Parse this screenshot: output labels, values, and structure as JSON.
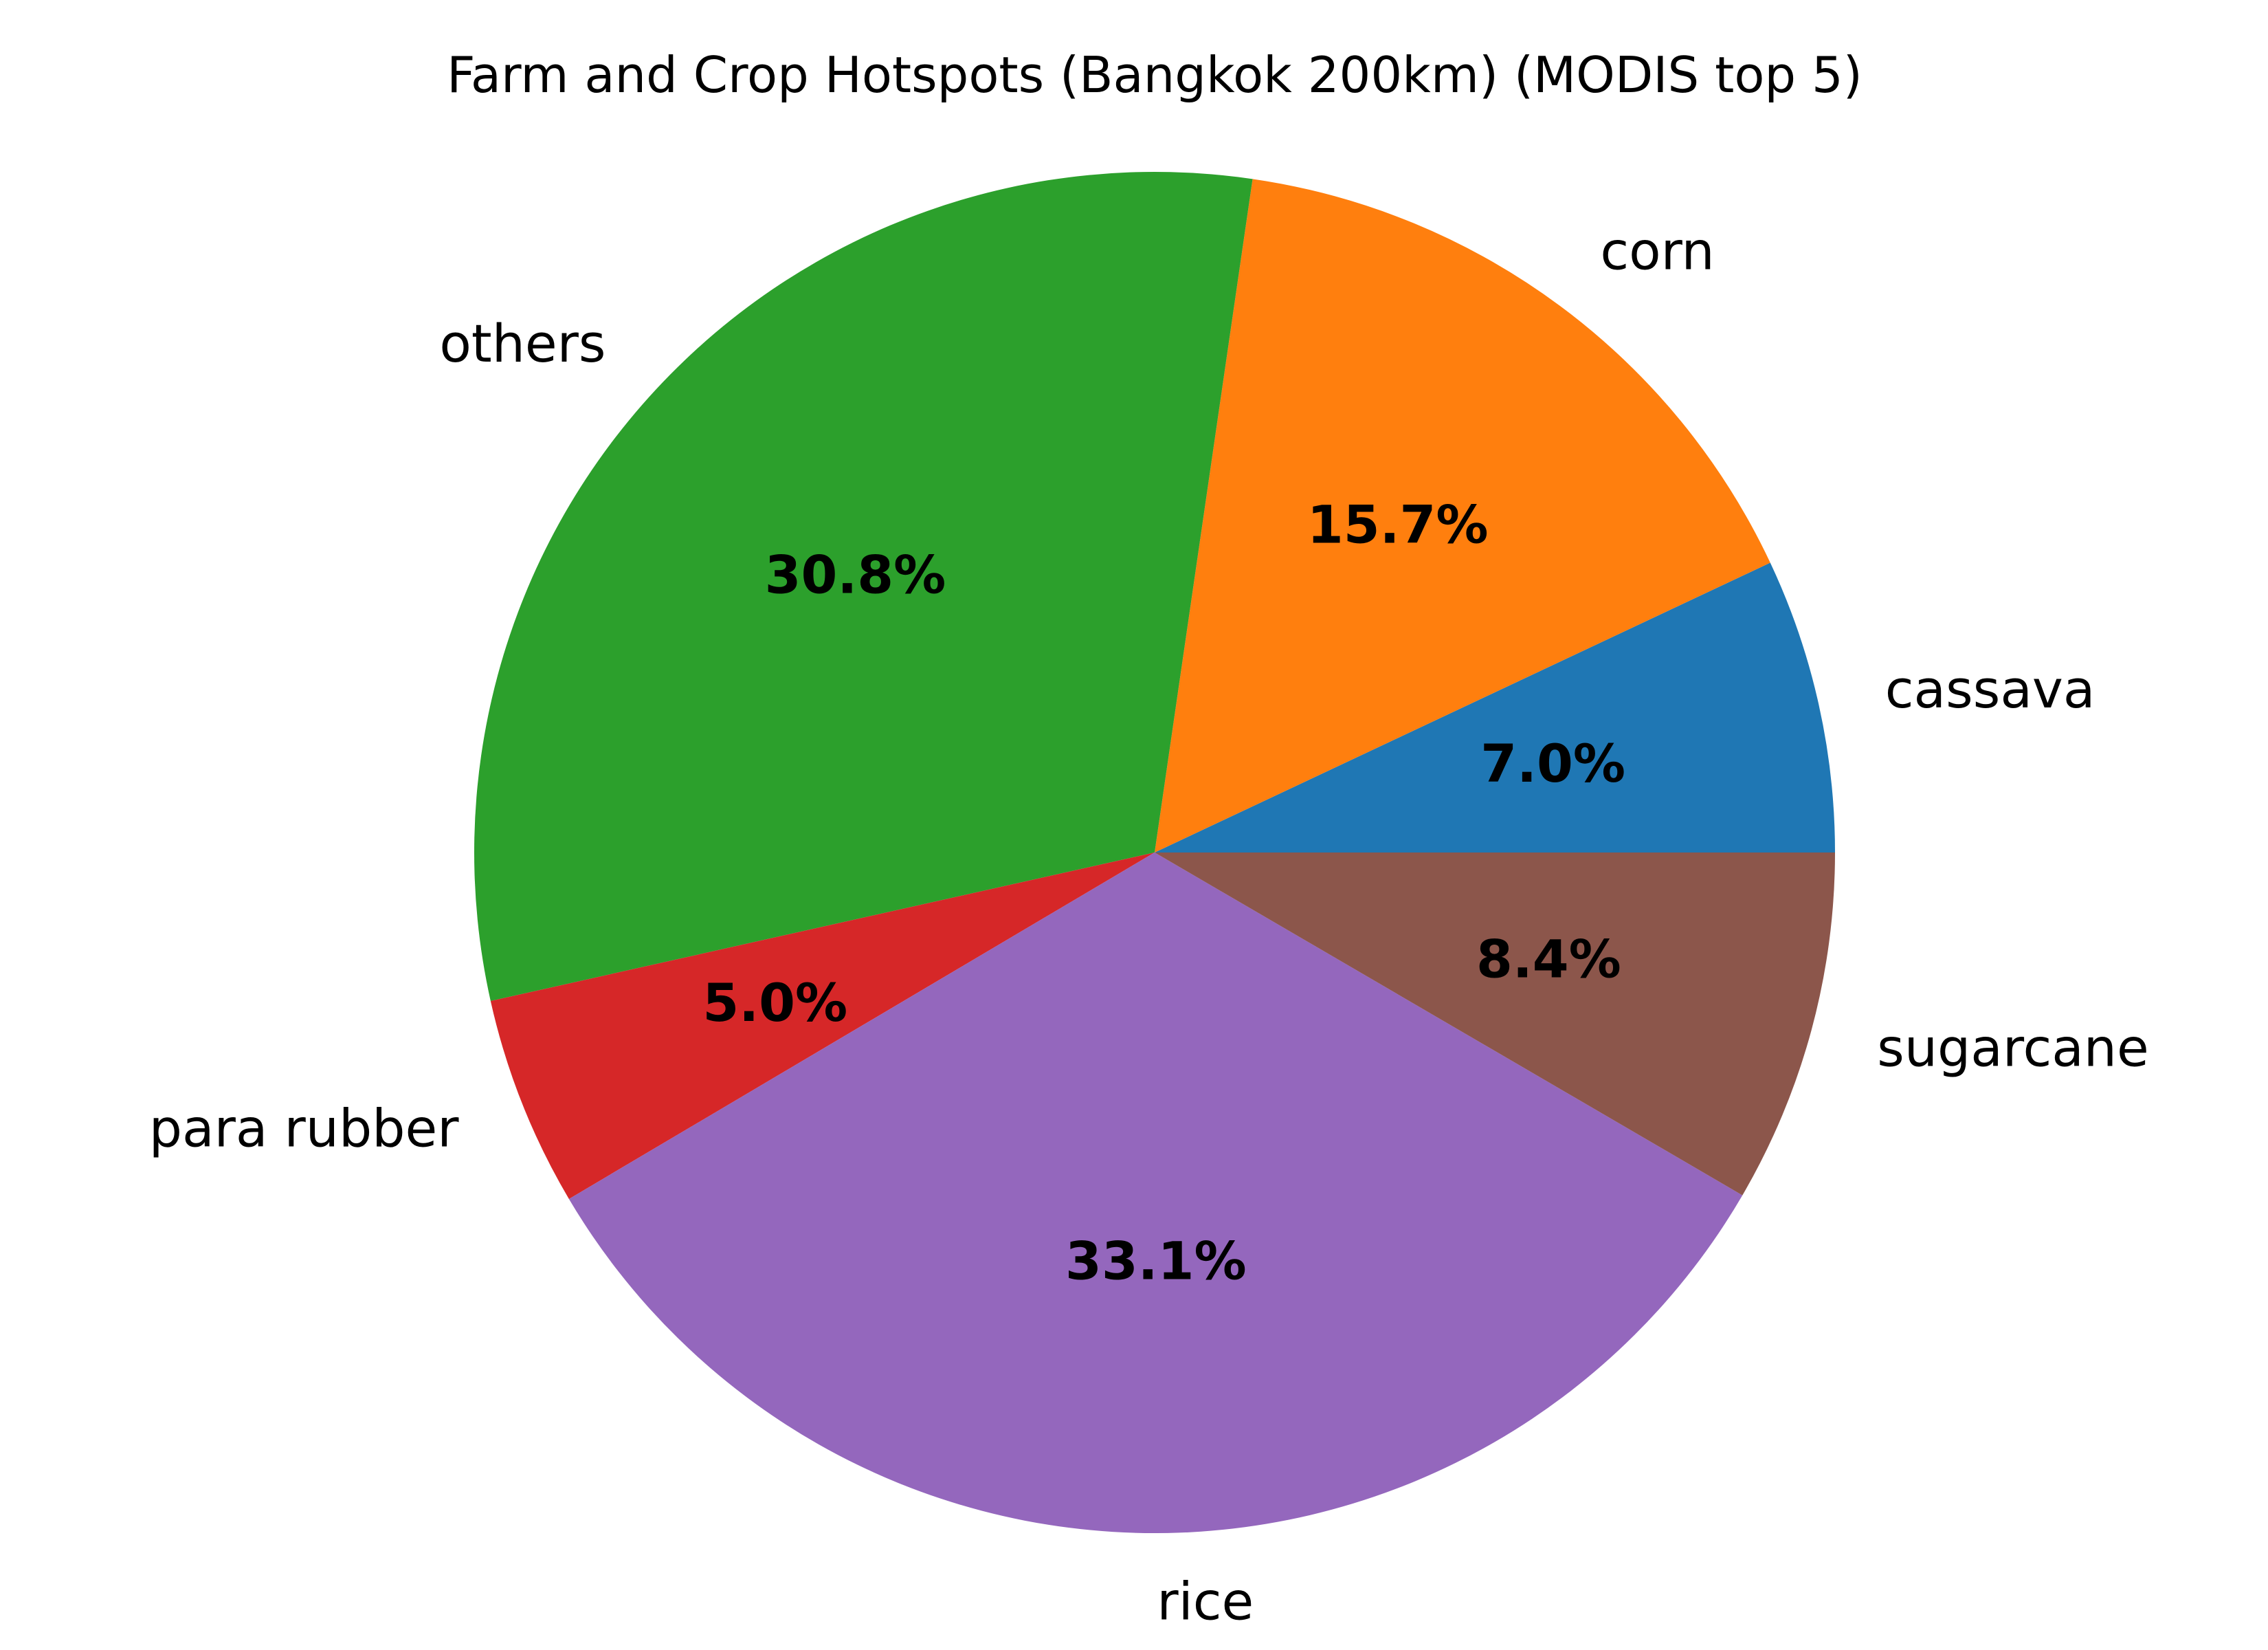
{
  "chart_data": {
    "type": "pie",
    "title": "Farm and Crop Hotspots (Bangkok 200km) (MODIS top 5)",
    "start_angle_deg": 0,
    "direction": "counterclockwise",
    "slices": [
      {
        "label": "cassava",
        "value": 7.0,
        "pct_label": "7.0%",
        "color": "#1f77b4"
      },
      {
        "label": "corn",
        "value": 15.7,
        "pct_label": "15.7%",
        "color": "#ff7f0e"
      },
      {
        "label": "others",
        "value": 30.8,
        "pct_label": "30.8%",
        "color": "#2ca02c"
      },
      {
        "label": "para rubber",
        "value": 5.0,
        "pct_label": "5.0%",
        "color": "#d62728"
      },
      {
        "label": "rice",
        "value": 33.1,
        "pct_label": "33.1%",
        "color": "#9467bd"
      },
      {
        "label": "sugarcane",
        "value": 8.4,
        "pct_label": "8.4%",
        "color": "#8c564b"
      }
    ]
  }
}
